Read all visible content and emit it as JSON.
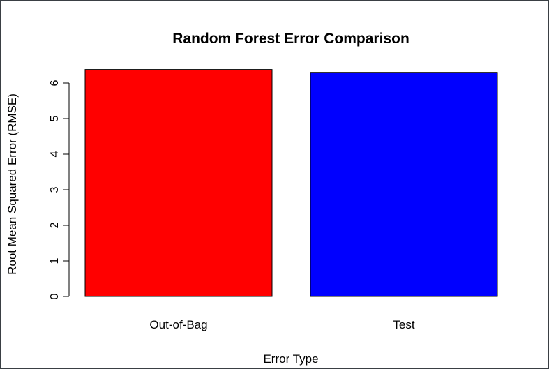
{
  "chart_data": {
    "type": "bar",
    "title": "Random Forest Error Comparison",
    "xlabel": "Error Type",
    "ylabel": "Root Mean Squared Error (RMSE)",
    "categories": [
      "Out-of-Bag",
      "Test"
    ],
    "values": [
      6.38,
      6.3
    ],
    "colors": [
      "#ff0000",
      "#0000ff"
    ],
    "ylim": [
      0,
      6
    ],
    "yticks": [
      0,
      1,
      2,
      3,
      4,
      5,
      6
    ],
    "grid": false,
    "legend": "none"
  }
}
